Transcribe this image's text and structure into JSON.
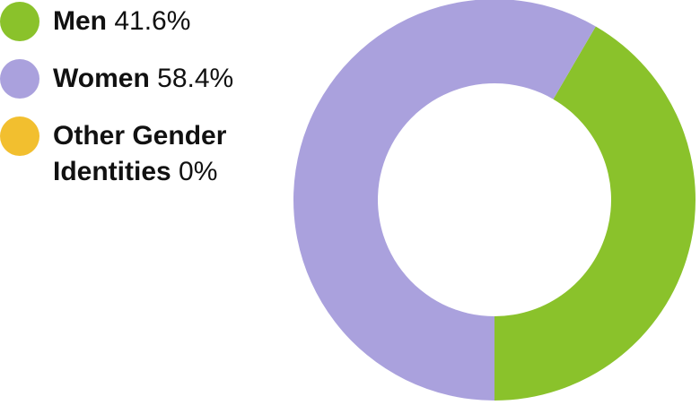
{
  "chart_data": {
    "type": "pie",
    "series": [
      {
        "name": "Men",
        "value": 41.6,
        "label": "41.6%",
        "color": "#8ac22b"
      },
      {
        "name": "Women",
        "value": 58.4,
        "label": "58.4%",
        "color": "#aaa1dd"
      },
      {
        "name": "Other Gender Identities",
        "value": 0,
        "label": "0%",
        "color": "#f2bf2f"
      }
    ],
    "donut": true,
    "legend_position": "left"
  }
}
